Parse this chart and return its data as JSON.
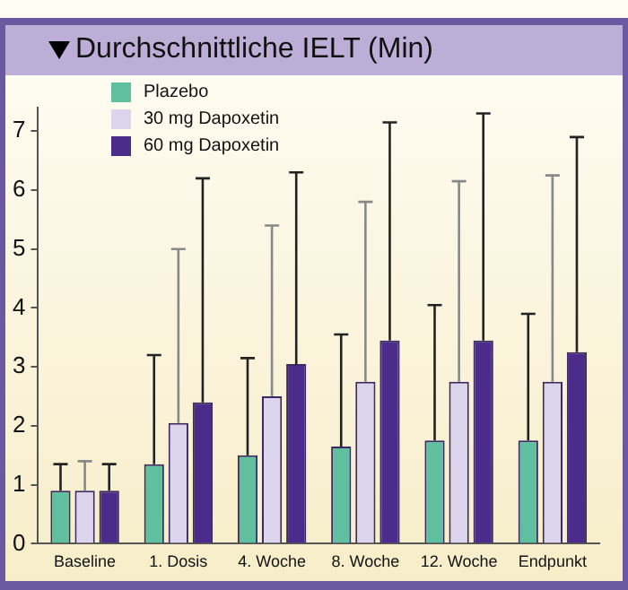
{
  "chart_data": {
    "type": "bar",
    "title": "Durchschnittliche IELT (Min)",
    "categories": [
      "Baseline",
      "1. Dosis",
      "4. Woche",
      "8. Woche",
      "12. Woche",
      "Endpunkt"
    ],
    "series": [
      {
        "name": "Plazebo",
        "color": "#5fbf9f",
        "values": [
          0.9,
          1.35,
          1.5,
          1.65,
          1.75,
          1.75
        ],
        "errors": [
          [
            0.9,
            1.35
          ],
          [
            1.35,
            3.2
          ],
          [
            1.5,
            3.15
          ],
          [
            1.65,
            3.55
          ],
          [
            1.75,
            4.05
          ],
          [
            1.75,
            3.9
          ]
        ]
      },
      {
        "name": "30 mg Dapoxetin",
        "color": "#ddd5ee",
        "values": [
          0.9,
          2.05,
          2.5,
          2.75,
          2.75,
          2.75
        ],
        "errors": [
          [
            0.9,
            1.4
          ],
          [
            2.05,
            5.0
          ],
          [
            2.5,
            5.4
          ],
          [
            2.75,
            5.8
          ],
          [
            2.75,
            6.15
          ],
          [
            2.75,
            6.25
          ]
        ]
      },
      {
        "name": "60 mg Dapoxetin",
        "color": "#4b2c8a",
        "values": [
          0.9,
          2.4,
          3.05,
          3.45,
          3.45,
          3.25
        ],
        "errors": [
          [
            0.9,
            1.35
          ],
          [
            2.4,
            6.2
          ],
          [
            3.05,
            6.3
          ],
          [
            3.45,
            7.15
          ],
          [
            3.45,
            7.3
          ],
          [
            3.25,
            6.9
          ]
        ]
      }
    ],
    "ylim": [
      0,
      7.4
    ],
    "yticks": [
      0,
      1,
      2,
      3,
      4,
      5,
      6,
      7
    ],
    "grid": false,
    "legend": "top left"
  }
}
